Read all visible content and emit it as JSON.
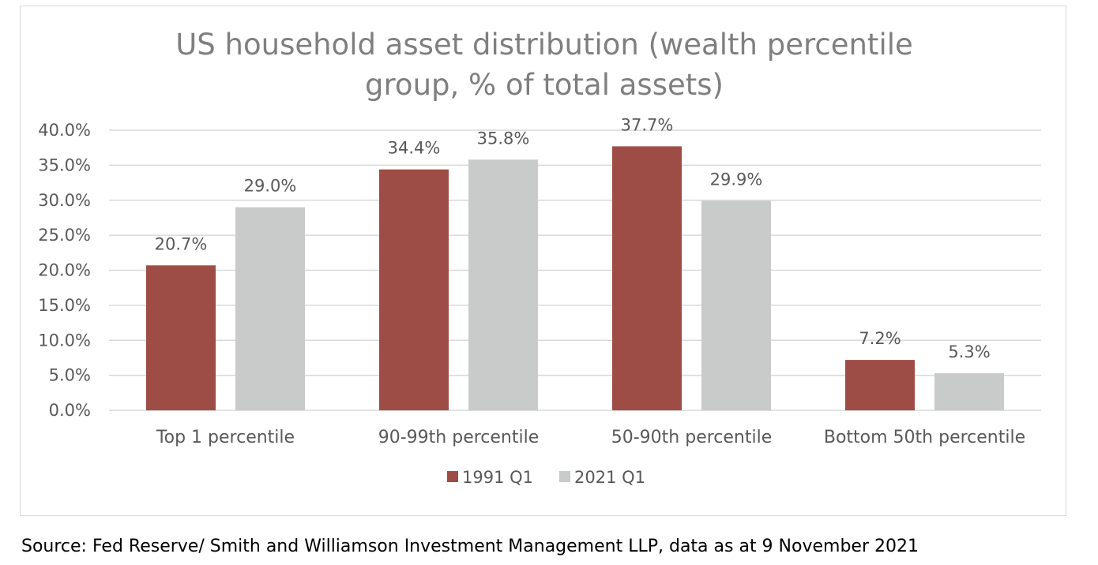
{
  "chart_data": {
    "type": "bar",
    "title_lines": [
      "US household asset distribution (wealth percentile",
      "group, % of total assets)"
    ],
    "categories": [
      "Top 1 percentile",
      "90-99th percentile",
      "50-90th percentile",
      "Bottom 50th percentile"
    ],
    "series": [
      {
        "name": "1991 Q1",
        "color": "#9e4d46",
        "values": [
          20.7,
          34.4,
          37.7,
          7.2
        ],
        "labels": [
          "20.7%",
          "34.4%",
          "37.7%",
          "7.2%"
        ]
      },
      {
        "name": "2021 Q1",
        "color": "#c9cbcb",
        "values": [
          29.0,
          35.8,
          29.9,
          5.3
        ],
        "labels": [
          "29.0%",
          "35.8%",
          "29.9%",
          "5.3%"
        ]
      }
    ],
    "y_ticks": [
      "0.0%",
      "5.0%",
      "10.0%",
      "15.0%",
      "20.0%",
      "25.0%",
      "30.0%",
      "35.0%",
      "40.0%"
    ],
    "ylim": [
      0,
      40
    ],
    "grid": true,
    "legend_position": "bottom"
  },
  "source": "Source: Fed Reserve/ Smith and Williamson Investment Management LLP, data as at 9 November 2021"
}
